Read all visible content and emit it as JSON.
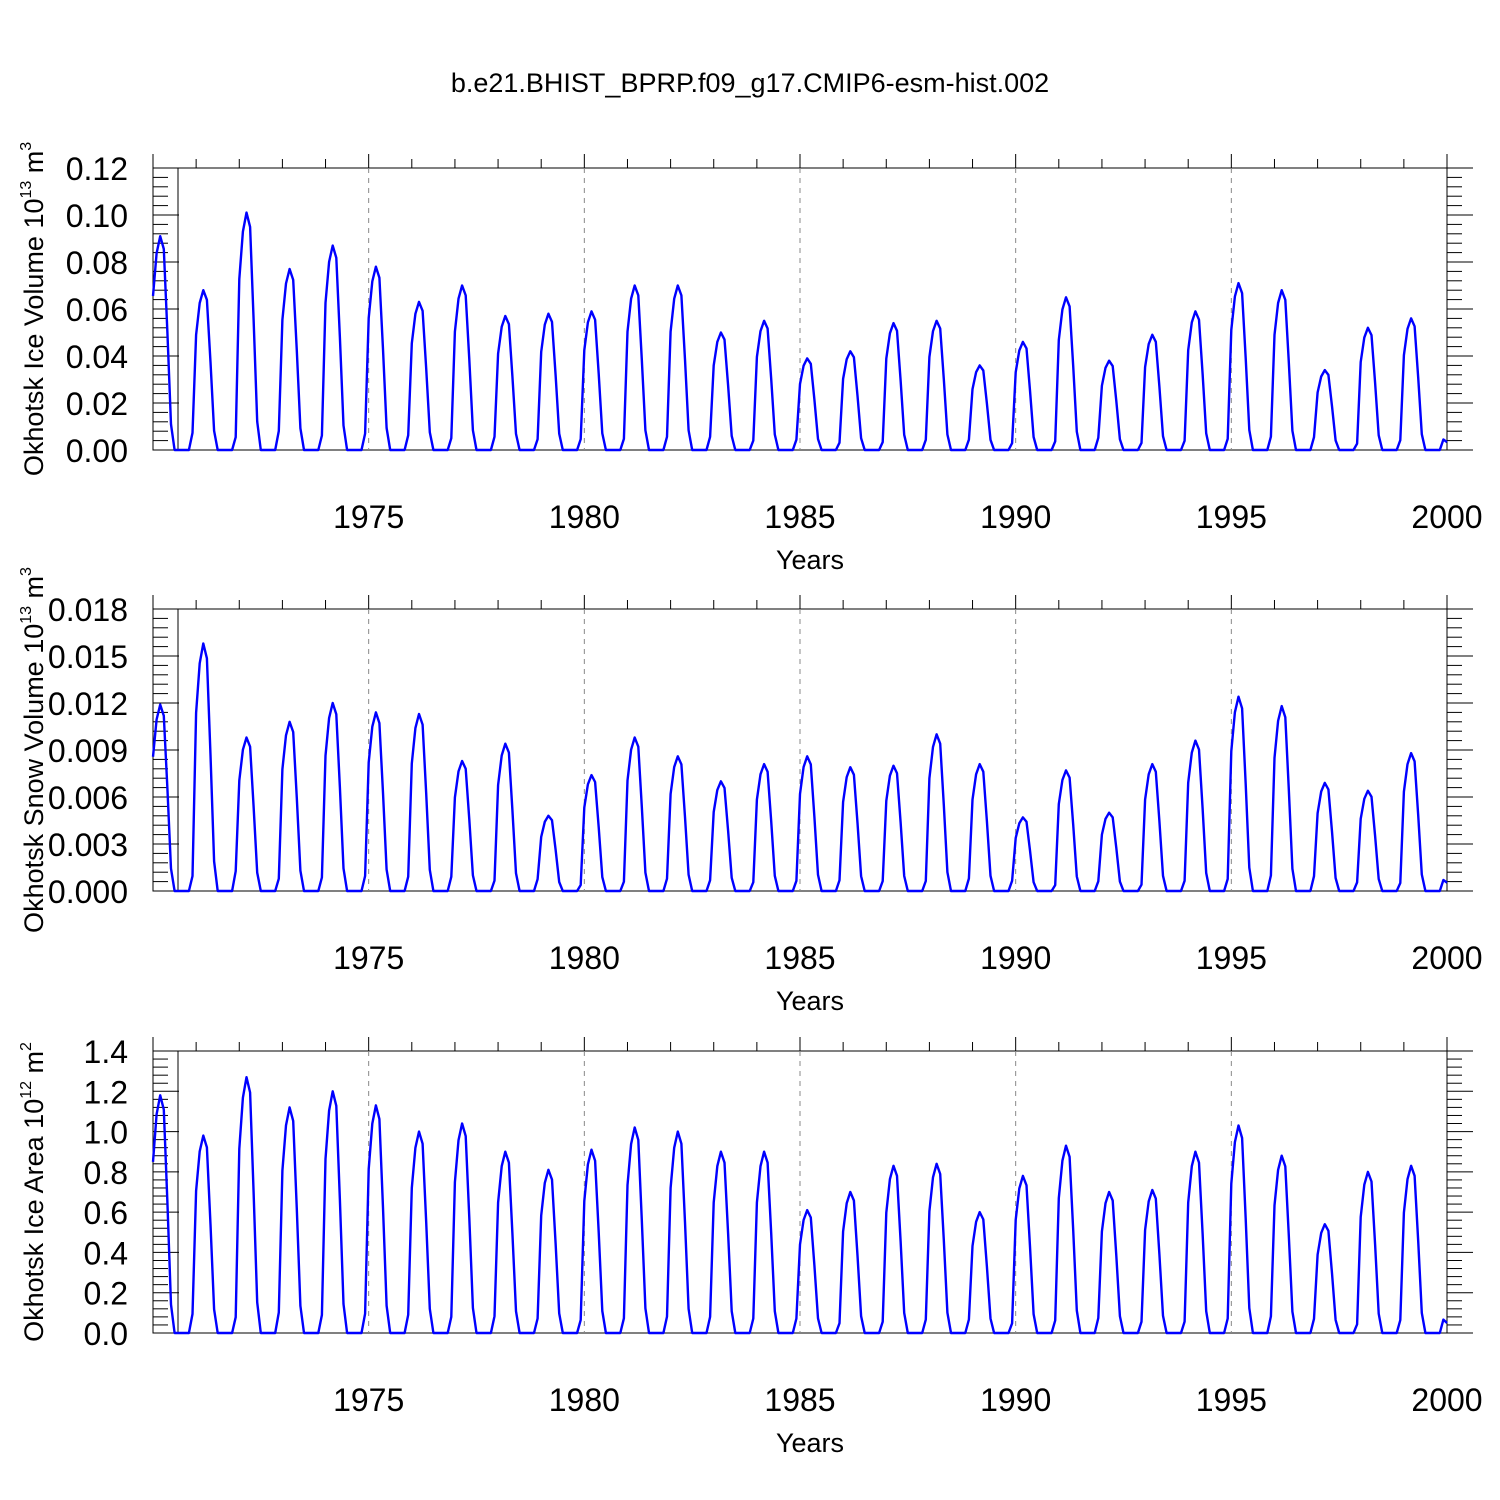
{
  "title": "b.e21.BHIST_BPRP.f09_g17.CMIP6-esm-hist.002",
  "chart_data": [
    {
      "type": "line",
      "name": "ice-volume",
      "ylabel": "Okhotsk Ice Volume 10",
      "ylabel_exp": "13",
      "ylabel_unit": " m",
      "ylabel_unit_exp": "3",
      "xlabel": "Years",
      "xlim": [
        1970,
        2000
      ],
      "ylim": [
        0,
        0.12
      ],
      "xticks": [
        "1975",
        "1980",
        "1985",
        "1990",
        "1995",
        "2000"
      ],
      "yticks": [
        "0.00",
        "0.02",
        "0.04",
        "0.06",
        "0.08",
        "0.10",
        "0.12"
      ],
      "color": "#0000ff",
      "annual_peaks": [
        0.091,
        0.068,
        0.101,
        0.077,
        0.087,
        0.078,
        0.063,
        0.07,
        0.057,
        0.058,
        0.059,
        0.07,
        0.07,
        0.05,
        0.055,
        0.039,
        0.042,
        0.054,
        0.055,
        0.036,
        0.046,
        0.065,
        0.038,
        0.049,
        0.059,
        0.071,
        0.068,
        0.034,
        0.052,
        0.056
      ]
    },
    {
      "type": "line",
      "name": "snow-volume",
      "ylabel": "Okhotsk Snow Volume 10",
      "ylabel_exp": "13",
      "ylabel_unit": " m",
      "ylabel_unit_exp": "3",
      "xlabel": "Years",
      "xlim": [
        1970,
        2000
      ],
      "ylim": [
        0,
        0.018
      ],
      "xticks": [
        "1975",
        "1980",
        "1985",
        "1990",
        "1995",
        "2000"
      ],
      "yticks": [
        "0.000",
        "0.003",
        "0.006",
        "0.009",
        "0.012",
        "0.015",
        "0.018"
      ],
      "color": "#0000ff",
      "annual_peaks": [
        0.0119,
        0.0158,
        0.0098,
        0.0108,
        0.012,
        0.0114,
        0.0113,
        0.0083,
        0.0094,
        0.0048,
        0.0074,
        0.0098,
        0.0086,
        0.007,
        0.0081,
        0.0086,
        0.0079,
        0.008,
        0.01,
        0.0081,
        0.0047,
        0.0077,
        0.005,
        0.0081,
        0.0096,
        0.0124,
        0.0118,
        0.0069,
        0.0064,
        0.0088
      ]
    },
    {
      "type": "line",
      "name": "ice-area",
      "ylabel": "Okhotsk Ice Area 10",
      "ylabel_exp": "12",
      "ylabel_unit": " m",
      "ylabel_unit_exp": "2",
      "xlabel": "Years",
      "xlim": [
        1970,
        2000
      ],
      "ylim": [
        0,
        1.4
      ],
      "xticks": [
        "1975",
        "1980",
        "1985",
        "1990",
        "1995",
        "2000"
      ],
      "yticks": [
        "0.0",
        "0.2",
        "0.4",
        "0.6",
        "0.8",
        "1.0",
        "1.2",
        "1.4"
      ],
      "color": "#0000ff",
      "annual_peaks": [
        1.18,
        0.98,
        1.27,
        1.12,
        1.2,
        1.13,
        1.0,
        1.04,
        0.9,
        0.81,
        0.91,
        1.02,
        1.0,
        0.9,
        0.9,
        0.61,
        0.7,
        0.83,
        0.84,
        0.6,
        0.78,
        0.93,
        0.7,
        0.71,
        0.9,
        1.03,
        0.88,
        0.54,
        0.8,
        0.83
      ]
    }
  ]
}
